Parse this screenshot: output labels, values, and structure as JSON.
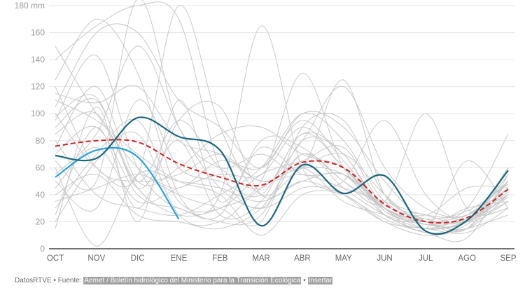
{
  "chart_data": {
    "type": "line",
    "yunit_label": "180 mm",
    "ylim": [
      0,
      180
    ],
    "yticks": [
      0,
      20,
      40,
      60,
      80,
      100,
      120,
      140,
      160
    ],
    "categories": [
      "OCT",
      "NOV",
      "DIC",
      "ENE",
      "FEB",
      "MAR",
      "ABR",
      "MAY",
      "JUN",
      "JUL",
      "AGO",
      "SEP"
    ],
    "grid": true,
    "highlight_series": [
      {
        "color": "#1a6680",
        "style": "solid",
        "values": [
          69,
          67,
          97,
          83,
          73,
          17,
          62,
          41,
          54,
          13,
          21,
          58
        ]
      },
      {
        "color": "#29a3d6",
        "style": "solid",
        "values": [
          53,
          73,
          68,
          22
        ]
      },
      {
        "color": "#cc2222",
        "style": "dashed",
        "values": [
          76,
          80,
          79,
          63,
          53,
          47,
          64,
          60,
          33,
          20,
          23,
          44
        ]
      }
    ],
    "background_series_color": "#c8c8c8",
    "background_series": [
      [
        150,
        100,
        60,
        40,
        30,
        20,
        90,
        95,
        40,
        20,
        15,
        60
      ],
      [
        140,
        165,
        180,
        170,
        60,
        30,
        70,
        50,
        30,
        15,
        20,
        40
      ],
      [
        125,
        170,
        130,
        40,
        20,
        25,
        80,
        70,
        25,
        20,
        15,
        50
      ],
      [
        115,
        108,
        120,
        80,
        70,
        50,
        55,
        45,
        35,
        25,
        25,
        45
      ],
      [
        105,
        160,
        160,
        110,
        90,
        60,
        100,
        90,
        50,
        20,
        20,
        55
      ],
      [
        100,
        60,
        55,
        180,
        90,
        40,
        60,
        70,
        40,
        18,
        30,
        35
      ],
      [
        95,
        143,
        60,
        30,
        40,
        165,
        60,
        40,
        20,
        15,
        12,
        30
      ],
      [
        90,
        110,
        50,
        95,
        60,
        45,
        80,
        120,
        60,
        30,
        25,
        50
      ],
      [
        85,
        100,
        45,
        25,
        30,
        50,
        130,
        60,
        30,
        20,
        15,
        40
      ],
      [
        80,
        40,
        30,
        25,
        40,
        60,
        100,
        80,
        35,
        22,
        20,
        45
      ],
      [
        75,
        120,
        50,
        60,
        85,
        90,
        70,
        60,
        30,
        20,
        30,
        85
      ],
      [
        70,
        90,
        40,
        30,
        25,
        80,
        75,
        50,
        35,
        100,
        30,
        30
      ],
      [
        65,
        50,
        185,
        90,
        60,
        70,
        60,
        125,
        40,
        25,
        20,
        40
      ],
      [
        60,
        2,
        55,
        50,
        45,
        35,
        50,
        55,
        30,
        15,
        65,
        30
      ],
      [
        55,
        85,
        150,
        90,
        45,
        30,
        45,
        50,
        95,
        40,
        20,
        35
      ],
      [
        50,
        30,
        110,
        60,
        50,
        40,
        85,
        70,
        28,
        20,
        22,
        38
      ],
      [
        45,
        75,
        35,
        45,
        55,
        55,
        90,
        60,
        32,
        25,
        45,
        45
      ],
      [
        40,
        55,
        25,
        20,
        15,
        30,
        70,
        45,
        25,
        12,
        18,
        50
      ],
      [
        35,
        45,
        55,
        45,
        65,
        60,
        95,
        65,
        30,
        20,
        25,
        40
      ],
      [
        30,
        70,
        95,
        35,
        30,
        55,
        65,
        75,
        30,
        18,
        22,
        42
      ],
      [
        25,
        90,
        30,
        95,
        105,
        40,
        50,
        40,
        22,
        12,
        8,
        55
      ],
      [
        20,
        65,
        85,
        25,
        20,
        45,
        60,
        35,
        25,
        15,
        20,
        35
      ],
      [
        15,
        105,
        20,
        110,
        35,
        75,
        55,
        55,
        30,
        22,
        28,
        48
      ],
      [
        110,
        95,
        70,
        50,
        40,
        10,
        40,
        40,
        20,
        10,
        15,
        25
      ],
      [
        120,
        60,
        50,
        55,
        70,
        50,
        60,
        55,
        25,
        15,
        25,
        50
      ],
      [
        98,
        112,
        45,
        80,
        25,
        35,
        85,
        60,
        28,
        18,
        20,
        60
      ]
    ]
  },
  "footer": {
    "brand": "DatosRTVE",
    "separator": " • ",
    "source_prefix": "Fuente: ",
    "source": "Aemet / Boletín hidrológico del Ministerio para la Transición Ecológica",
    "separator2": " • ",
    "embed": "Insertar"
  }
}
